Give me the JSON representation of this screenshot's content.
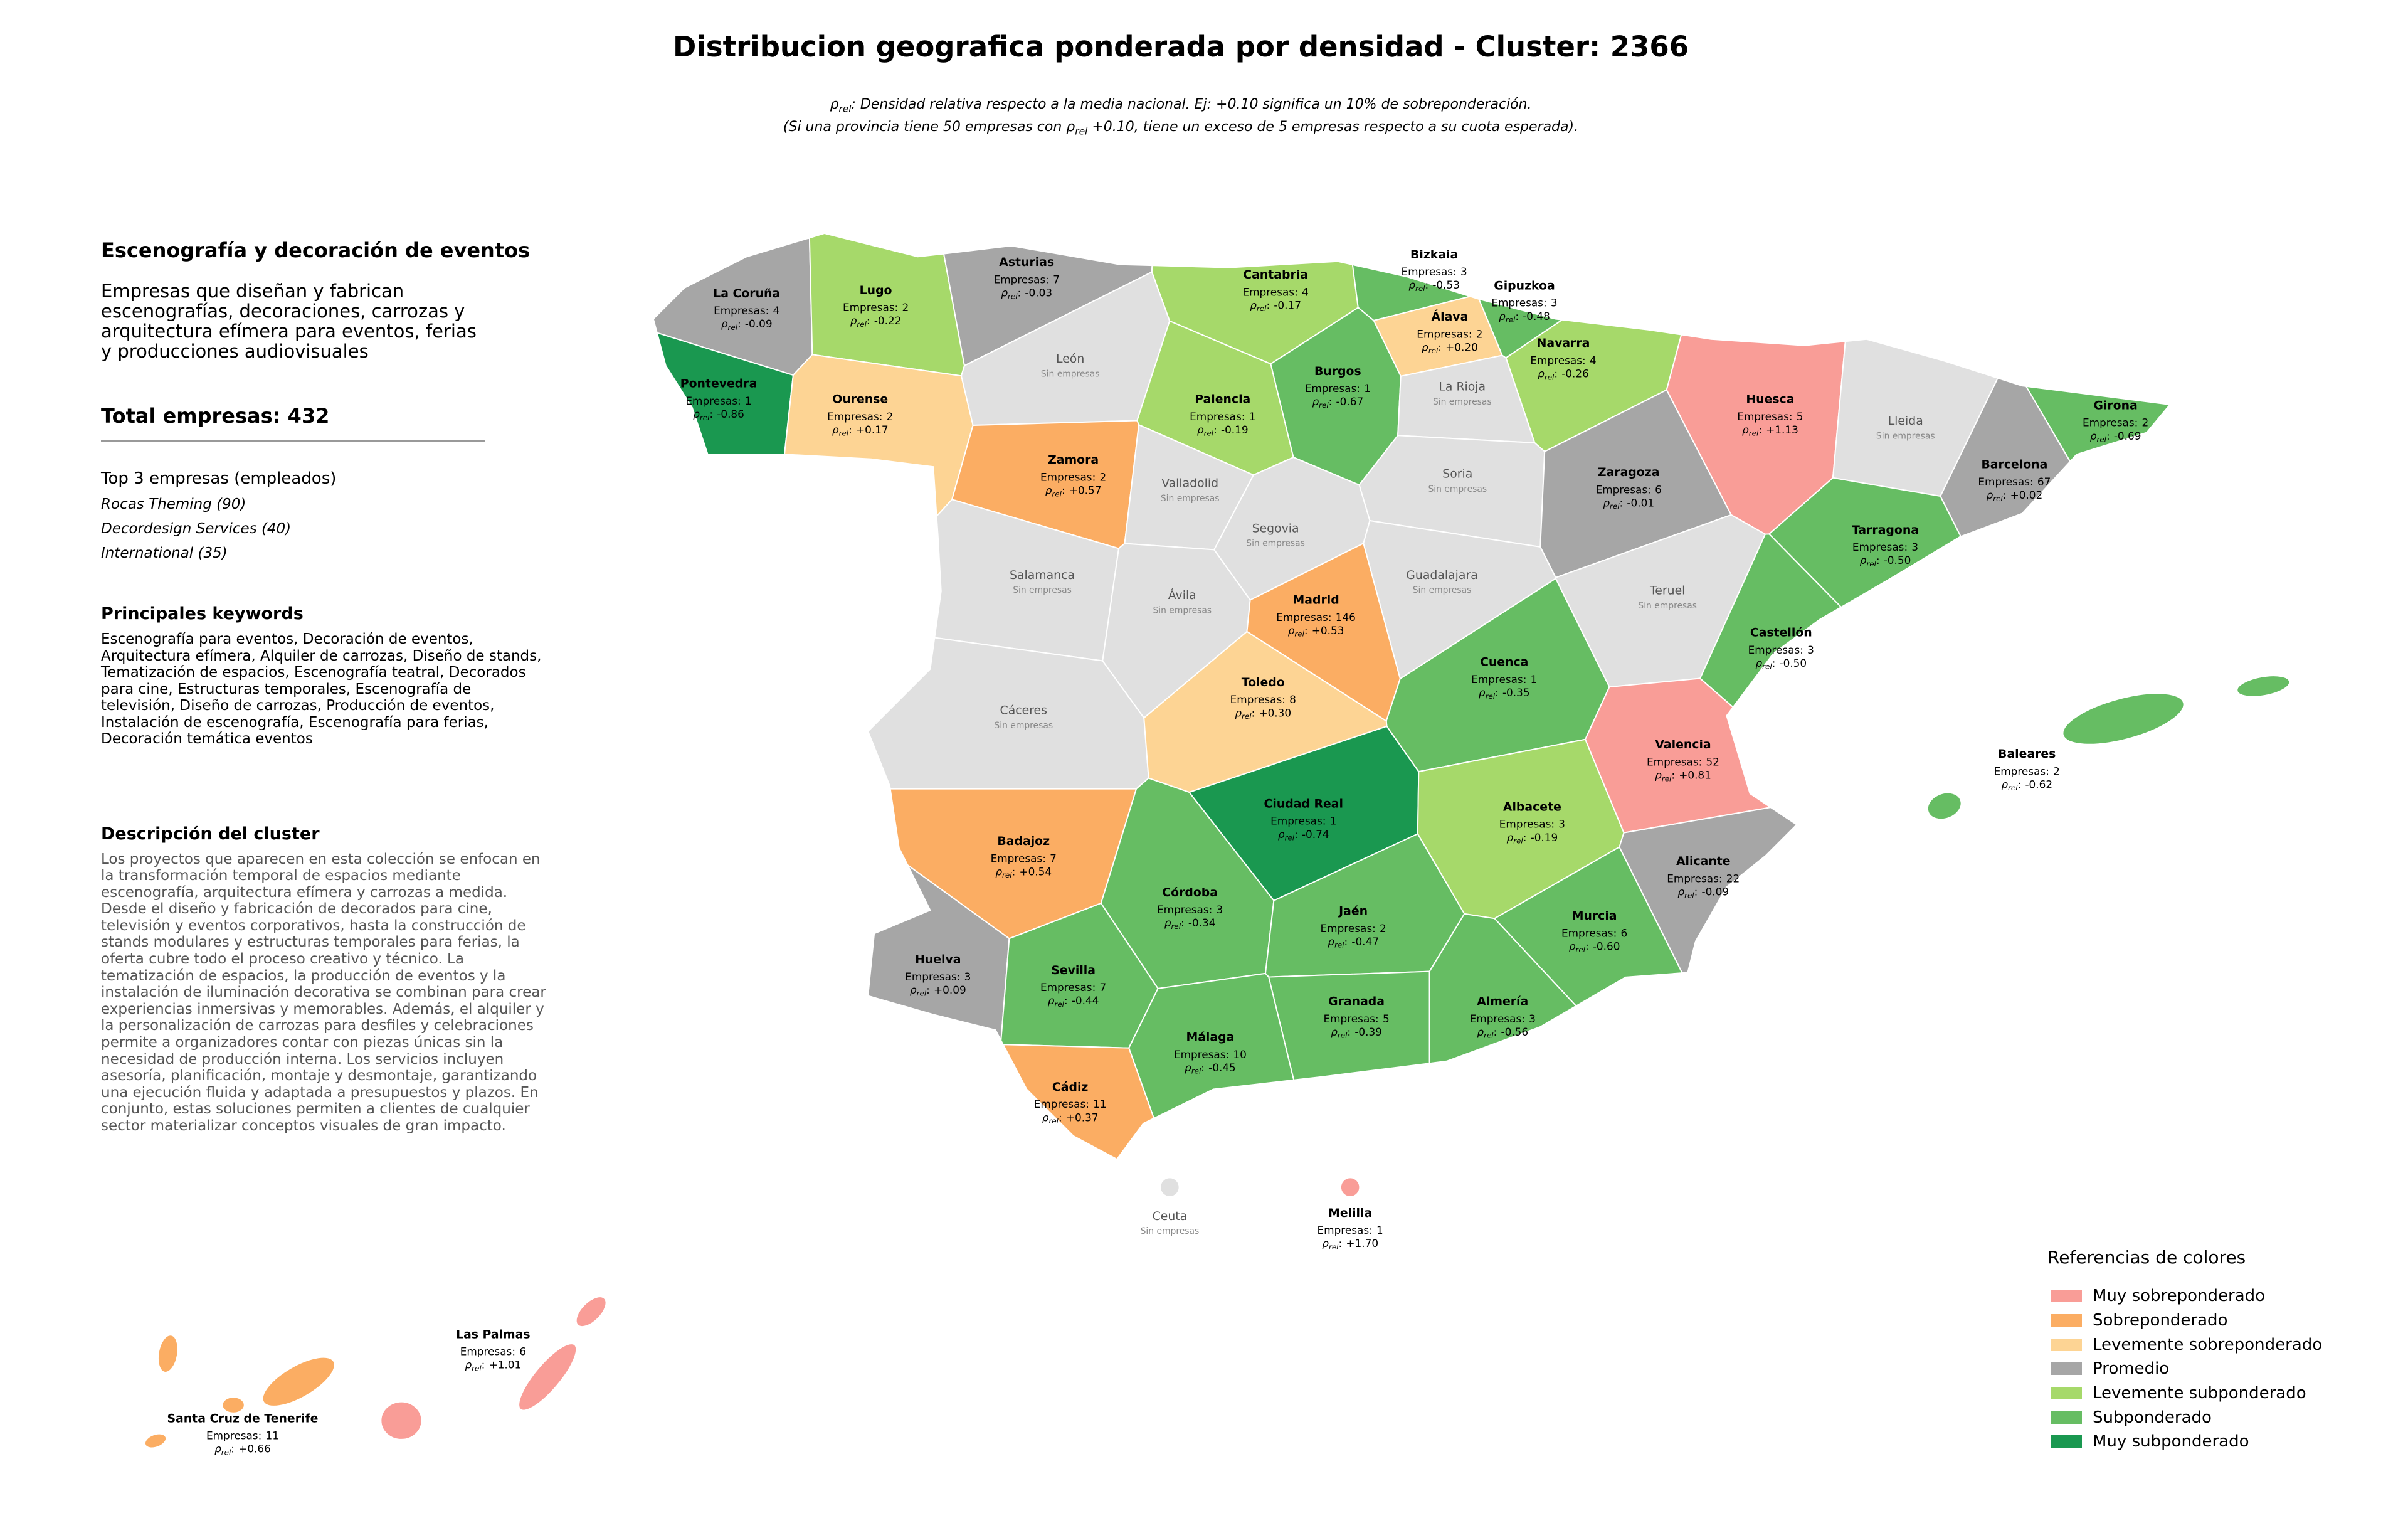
{
  "title": "Distribucion geografica ponderada por densidad - Cluster: 2366",
  "subtitle": {
    "line1_rest": ": Densidad relativa respecto a la media nacional. Ej: +0.10 significa un 10% de sobreponderación.",
    "line2_pre": "(Si una provincia tiene 50 empresas con ",
    "line2_post": " +0.10, tiene un exceso de 5 empresas respecto a su cuota esperada)."
  },
  "panel": {
    "heading": "Escenografía y decoración de eventos",
    "short_description": "Empresas que diseñan y fabrican escenografías, decoraciones, carrozas y arquitectura efímera para eventos, ferias y producciones audiovisuales",
    "total": "Total empresas: 432",
    "top_title": "Top 3 empresas (empleados)",
    "top_companies": [
      "Rocas Theming (90)",
      "Decordesign Services (40)",
      "International (35)"
    ],
    "keywords_title": "Principales keywords",
    "keywords": "Escenografía para eventos, Decoración de eventos, Arquitectura efímera, Alquiler de carrozas, Diseño de stands, Tematización de espacios, Escenografía teatral, Decorados para cine, Estructuras temporales, Escenografía de televisión, Diseño de carrozas, Producción de eventos, Instalación de escenografía, Escenografía para ferias, Decoración temática eventos",
    "description_title": "Descripción del cluster",
    "description": "Los proyectos que aparecen en esta colección se enfocan en la transformación temporal de espacios mediante escenografía, arquitectura efímera y carrozas a medida. Desde el diseño y fabricación de decorados para cine, televisión y eventos corporativos, hasta la construcción de stands modulares y estructuras temporales para ferias, la oferta cubre todo el proceso creativo y técnico. La tematización de espacios, la producción de eventos y la instalación de iluminación decorativa se combinan para crear experiencias inmersivas y memorables. Además, el alquiler y la personalización de carrozas para desfiles y celebraciones permite a organizadores contar con piezas únicas sin la necesidad de producción interna. Los servicios incluyen asesoría, planificación, montaje y desmontaje, garantizando una ejecución fluida y adaptada a presupuestos y plazos. En conjunto, estas soluciones permiten a clientes de cualquier sector materializar conceptos visuales de gran impacto."
  },
  "map": {
    "labels": {
      "empresas": "Empresas:",
      "rho_symbol": "ρ",
      "rho_sub": "rel",
      "rho_sep": ":"
    },
    "no_data": {
      "label": "Sin empresas",
      "color": "#e0e0e0"
    },
    "legend": {
      "title": "Referencias de colores",
      "items": [
        {
          "label": "Muy sobreponderado",
          "color": "#f99d97"
        },
        {
          "label": "Sobreponderado",
          "color": "#fbad63"
        },
        {
          "label": "Levemente sobreponderado",
          "color": "#fdd494"
        },
        {
          "label": "Promedio",
          "color": "#a6a6a6"
        },
        {
          "label": "Levemente subponderado",
          "color": "#a6d96a"
        },
        {
          "label": "Subponderado",
          "color": "#66bd63"
        },
        {
          "label": "Muy subponderado",
          "color": "#1a9850"
        }
      ]
    },
    "provinces": [
      {
        "name": "La Coruña",
        "empresas": 4,
        "rho": {
          "value": -0.09,
          "label": "-0.09"
        },
        "category": 3
      },
      {
        "name": "Lugo",
        "empresas": 2,
        "rho": {
          "value": -0.22,
          "label": "-0.22"
        },
        "category": 4
      },
      {
        "name": "Asturias",
        "empresas": 7,
        "rho": {
          "value": -0.03,
          "label": "-0.03"
        },
        "category": 3
      },
      {
        "name": "Cantabria",
        "empresas": 4,
        "rho": {
          "value": -0.17,
          "label": "-0.17"
        },
        "category": 4
      },
      {
        "name": "Bizkaia",
        "empresas": 3,
        "rho": {
          "value": -0.53,
          "label": "-0.53"
        },
        "category": 5
      },
      {
        "name": "Gipuzkoa",
        "empresas": 3,
        "rho": {
          "value": -0.48,
          "label": "-0.48"
        },
        "category": 5
      },
      {
        "name": "Álava",
        "empresas": 2,
        "rho": {
          "value": 0.2,
          "label": "+0.20"
        },
        "category": 2
      },
      {
        "name": "Navarra",
        "empresas": 4,
        "rho": {
          "value": -0.26,
          "label": "-0.26"
        },
        "category": 4
      },
      {
        "name": "Huesca",
        "empresas": 5,
        "rho": {
          "value": 1.13,
          "label": "+1.13"
        },
        "category": 0
      },
      {
        "name": "Lleida"
      },
      {
        "name": "Girona",
        "empresas": 2,
        "rho": {
          "value": -0.69,
          "label": "-0.69"
        },
        "category": 5
      },
      {
        "name": "Barcelona",
        "empresas": 67,
        "rho": {
          "value": 0.02,
          "label": "+0.02"
        },
        "category": 3
      },
      {
        "name": "Tarragona",
        "empresas": 3,
        "rho": {
          "value": -0.5,
          "label": "-0.50"
        },
        "category": 5
      },
      {
        "name": "Pontevedra",
        "empresas": 1,
        "rho": {
          "value": -0.86,
          "label": "-0.86"
        },
        "category": 6
      },
      {
        "name": "Ourense",
        "empresas": 2,
        "rho": {
          "value": 0.17,
          "label": "+0.17"
        },
        "category": 2
      },
      {
        "name": "León"
      },
      {
        "name": "Palencia",
        "empresas": 1,
        "rho": {
          "value": -0.19,
          "label": "-0.19"
        },
        "category": 4
      },
      {
        "name": "Burgos",
        "empresas": 1,
        "rho": {
          "value": -0.67,
          "label": "-0.67"
        },
        "category": 5
      },
      {
        "name": "La Rioja"
      },
      {
        "name": "Soria"
      },
      {
        "name": "Zaragoza",
        "empresas": 6,
        "rho": {
          "value": -0.01,
          "label": "-0.01"
        },
        "category": 3
      },
      {
        "name": "Zamora",
        "empresas": 2,
        "rho": {
          "value": 0.57,
          "label": "+0.57"
        },
        "category": 1
      },
      {
        "name": "Valladolid"
      },
      {
        "name": "Segovia"
      },
      {
        "name": "Guadalajara"
      },
      {
        "name": "Teruel"
      },
      {
        "name": "Castellón",
        "empresas": 3,
        "rho": {
          "value": -0.5,
          "label": "-0.50"
        },
        "category": 5
      },
      {
        "name": "Salamanca"
      },
      {
        "name": "Ávila"
      },
      {
        "name": "Madrid",
        "empresas": 146,
        "rho": {
          "value": 0.53,
          "label": "+0.53"
        },
        "category": 1
      },
      {
        "name": "Cuenca",
        "empresas": 1,
        "rho": {
          "value": -0.35,
          "label": "-0.35"
        },
        "category": 5
      },
      {
        "name": "Valencia",
        "empresas": 52,
        "rho": {
          "value": 0.81,
          "label": "+0.81"
        },
        "category": 0
      },
      {
        "name": "Cáceres"
      },
      {
        "name": "Toledo",
        "empresas": 8,
        "rho": {
          "value": 0.3,
          "label": "+0.30"
        },
        "category": 2
      },
      {
        "name": "Ciudad Real",
        "empresas": 1,
        "rho": {
          "value": -0.74,
          "label": "-0.74"
        },
        "category": 6
      },
      {
        "name": "Albacete",
        "empresas": 3,
        "rho": {
          "value": -0.19,
          "label": "-0.19"
        },
        "category": 4
      },
      {
        "name": "Alicante",
        "empresas": 22,
        "rho": {
          "value": -0.09,
          "label": "-0.09"
        },
        "category": 3
      },
      {
        "name": "Badajoz",
        "empresas": 7,
        "rho": {
          "value": 0.54,
          "label": "+0.54"
        },
        "category": 1
      },
      {
        "name": "Córdoba",
        "empresas": 3,
        "rho": {
          "value": -0.34,
          "label": "-0.34"
        },
        "category": 5
      },
      {
        "name": "Jaén",
        "empresas": 2,
        "rho": {
          "value": -0.47,
          "label": "-0.47"
        },
        "category": 5
      },
      {
        "name": "Murcia",
        "empresas": 6,
        "rho": {
          "value": -0.6,
          "label": "-0.60"
        },
        "category": 5
      },
      {
        "name": "Huelva",
        "empresas": 3,
        "rho": {
          "value": 0.09,
          "label": "+0.09"
        },
        "category": 3
      },
      {
        "name": "Sevilla",
        "empresas": 7,
        "rho": {
          "value": -0.44,
          "label": "-0.44"
        },
        "category": 5
      },
      {
        "name": "Granada",
        "empresas": 5,
        "rho": {
          "value": -0.39,
          "label": "-0.39"
        },
        "category": 5
      },
      {
        "name": "Almería",
        "empresas": 3,
        "rho": {
          "value": -0.56,
          "label": "-0.56"
        },
        "category": 5
      },
      {
        "name": "Málaga",
        "empresas": 10,
        "rho": {
          "value": -0.45,
          "label": "-0.45"
        },
        "category": 5
      },
      {
        "name": "Cádiz",
        "empresas": 11,
        "rho": {
          "value": 0.37,
          "label": "+0.37"
        },
        "category": 1
      },
      {
        "name": "Baleares",
        "empresas": 2,
        "rho": {
          "value": -0.62,
          "label": "-0.62"
        },
        "category": 5
      },
      {
        "name": "Las Palmas",
        "empresas": 6,
        "rho": {
          "value": 1.01,
          "label": "+1.01"
        },
        "category": 0
      },
      {
        "name": "Santa Cruz de Tenerife",
        "empresas": 11,
        "rho": {
          "value": 0.66,
          "label": "+0.66"
        },
        "category": 1
      },
      {
        "name": "Ceuta"
      },
      {
        "name": "Melilla",
        "empresas": 1,
        "rho": {
          "value": 1.7,
          "label": "+1.70"
        },
        "category": 0
      }
    ]
  }
}
